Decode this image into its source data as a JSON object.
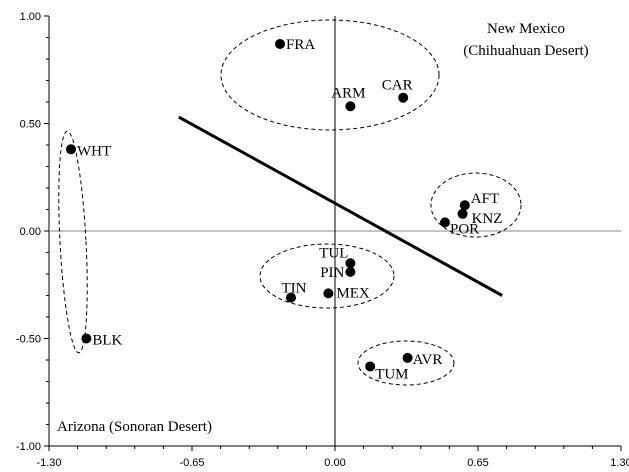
{
  "chart_data": {
    "type": "scatter",
    "title": "",
    "xlabel": "",
    "ylabel": "",
    "xlim": [
      -1.3,
      1.3
    ],
    "ylim": [
      -1.0,
      1.0
    ],
    "x_ticks": [
      "-1.30",
      "-0.65",
      "0.00",
      "0.65",
      "1.30"
    ],
    "y_ticks": [
      "1.00",
      "0.50",
      "0.00",
      "-0.50",
      "-1.00"
    ],
    "grid": false,
    "points": [
      {
        "label": "FRA",
        "x": -0.25,
        "y": 0.87
      },
      {
        "label": "ARM",
        "x": 0.07,
        "y": 0.58
      },
      {
        "label": "CAR",
        "x": 0.31,
        "y": 0.62
      },
      {
        "label": "WHT",
        "x": -1.2,
        "y": 0.38
      },
      {
        "label": "AFT",
        "x": 0.59,
        "y": 0.12
      },
      {
        "label": "KNZ",
        "x": 0.58,
        "y": 0.08
      },
      {
        "label": "POR",
        "x": 0.5,
        "y": 0.04
      },
      {
        "label": "TUL",
        "x": 0.07,
        "y": -0.15
      },
      {
        "label": "PIN",
        "x": 0.07,
        "y": -0.19
      },
      {
        "label": "TIN",
        "x": -0.2,
        "y": -0.31
      },
      {
        "label": "MEX",
        "x": -0.03,
        "y": -0.29
      },
      {
        "label": "BLK",
        "x": -1.13,
        "y": -0.5
      },
      {
        "label": "AVR",
        "x": 0.33,
        "y": -0.59
      },
      {
        "label": "TUM",
        "x": 0.16,
        "y": -0.63
      }
    ],
    "trend_line": {
      "x1": -0.71,
      "y1": 0.53,
      "x2": 0.76,
      "y2": -0.3
    },
    "annotations": {
      "top_right": [
        "New Mexico",
        "(Chihuahuan Desert)"
      ],
      "bottom_left": "Arizona (Sonoran Desert)"
    }
  }
}
